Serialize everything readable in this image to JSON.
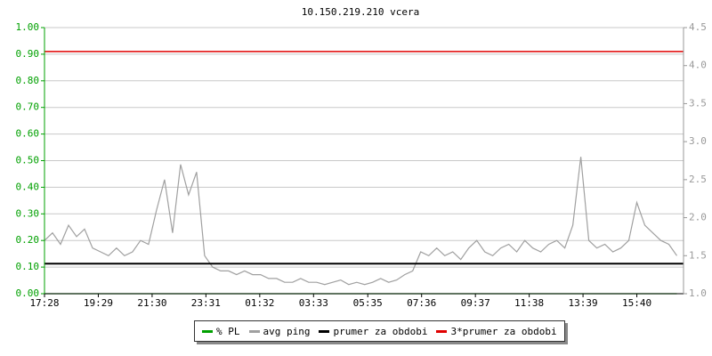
{
  "chart_data": {
    "type": "line",
    "title": "10.150.219.210 vcera",
    "x": [
      "17:28",
      "17:46",
      "18:04",
      "18:22",
      "18:40",
      "18:58",
      "19:16",
      "19:34",
      "19:52",
      "20:10",
      "20:28",
      "20:46",
      "21:04",
      "21:22",
      "21:40",
      "21:58",
      "22:16",
      "22:34",
      "22:52",
      "23:10",
      "23:28",
      "23:46",
      "00:04",
      "00:22",
      "00:40",
      "00:58",
      "01:16",
      "01:34",
      "01:52",
      "02:10",
      "02:28",
      "02:46",
      "03:04",
      "03:22",
      "03:40",
      "03:58",
      "04:16",
      "04:34",
      "04:52",
      "05:10",
      "05:28",
      "05:46",
      "06:04",
      "06:22",
      "06:40",
      "06:58",
      "07:16",
      "07:34",
      "07:52",
      "08:10",
      "08:28",
      "08:46",
      "09:04",
      "09:22",
      "09:40",
      "09:58",
      "10:16",
      "10:34",
      "10:52",
      "11:10",
      "11:28",
      "11:46",
      "12:04",
      "12:22",
      "12:40",
      "12:58",
      "13:16",
      "13:34",
      "13:52",
      "14:10",
      "14:28",
      "14:46",
      "15:04",
      "15:22",
      "15:40",
      "15:58",
      "16:16",
      "16:34",
      "16:52",
      "17:10"
    ],
    "xlim": [
      "17:28",
      "17:25"
    ],
    "xticks": [
      "17:28",
      "19:29",
      "21:30",
      "23:31",
      "01:32",
      "03:33",
      "05:35",
      "07:36",
      "09:37",
      "11:38",
      "13:39",
      "15:40"
    ],
    "ylim": [
      0,
      1
    ],
    "yticks": [
      {
        "value": 0,
        "label": "0.00"
      },
      {
        "value": 0.1,
        "label": "0.10"
      },
      {
        "value": 0.2,
        "label": "0.20"
      },
      {
        "value": 0.3,
        "label": "0.30"
      },
      {
        "value": 0.4,
        "label": "0.40"
      },
      {
        "value": 0.5,
        "label": "0.50"
      },
      {
        "value": 0.6,
        "label": "0.60"
      },
      {
        "value": 0.7,
        "label": "0.70"
      },
      {
        "value": 0.8,
        "label": "0.80"
      },
      {
        "value": 0.9,
        "label": "0.90"
      },
      {
        "value": 1,
        "label": "1.00"
      }
    ],
    "y2lim": [
      1,
      4.5
    ],
    "y2ticks": [
      {
        "value": 1,
        "label": "1.0"
      },
      {
        "value": 1.5,
        "label": "1.5"
      },
      {
        "value": 2,
        "label": "2.0"
      },
      {
        "value": 2.5,
        "label": "2.5"
      },
      {
        "value": 3,
        "label": "3.0"
      },
      {
        "value": 3.5,
        "label": "3.5"
      },
      {
        "value": 4,
        "label": "4.0"
      },
      {
        "value": 4.5,
        "label": "4.5"
      }
    ],
    "grid": true,
    "series": [
      {
        "name": "% PL",
        "color": "#00a000",
        "values": [
          0,
          0,
          0,
          0,
          0,
          0,
          0,
          0,
          0,
          0,
          0,
          0,
          0,
          0,
          0,
          0,
          0,
          0,
          0,
          0,
          0,
          0,
          0,
          0,
          0,
          0,
          0,
          0,
          0,
          0,
          0,
          0,
          0,
          0,
          0,
          0,
          0,
          0,
          0,
          0,
          0,
          0,
          0,
          0,
          0,
          0,
          0,
          0,
          0,
          0,
          0,
          0,
          0,
          0,
          0,
          0,
          0,
          0,
          0,
          0,
          0,
          0,
          0,
          0,
          0,
          0,
          0,
          0,
          0,
          0,
          0,
          0,
          0,
          0,
          0,
          0,
          0,
          0,
          0,
          0
        ]
      },
      {
        "name": "avg ping",
        "color": "#a0a0a0",
        "axis": "y2",
        "values": [
          1.7,
          1.8,
          1.65,
          1.9,
          1.75,
          1.85,
          1.6,
          1.55,
          1.5,
          1.6,
          1.5,
          1.55,
          1.7,
          1.65,
          2.1,
          2.5,
          1.8,
          2.7,
          2.3,
          2.6,
          1.5,
          1.35,
          1.3,
          1.3,
          1.25,
          1.3,
          1.25,
          1.25,
          1.2,
          1.2,
          1.15,
          1.15,
          1.2,
          1.15,
          1.15,
          1.12,
          1.15,
          1.18,
          1.12,
          1.15,
          1.12,
          1.15,
          1.2,
          1.15,
          1.18,
          1.25,
          1.3,
          1.55,
          1.5,
          1.6,
          1.5,
          1.55,
          1.45,
          1.6,
          1.7,
          1.55,
          1.5,
          1.6,
          1.65,
          1.55,
          1.7,
          1.6,
          1.55,
          1.65,
          1.7,
          1.6,
          1.9,
          2.8,
          1.7,
          1.6,
          1.65,
          1.55,
          1.6,
          1.7,
          2.2,
          1.9,
          1.8,
          1.7,
          1.65,
          1.5
        ]
      }
    ],
    "reference_lines": [
      {
        "name": "prumer za obdobi",
        "color": "#000000",
        "axis": "y2",
        "value": 1.395
      },
      {
        "name": "3*prumer za obdobi",
        "color": "#e00000",
        "axis": "y2",
        "value": 4.185
      }
    ]
  }
}
